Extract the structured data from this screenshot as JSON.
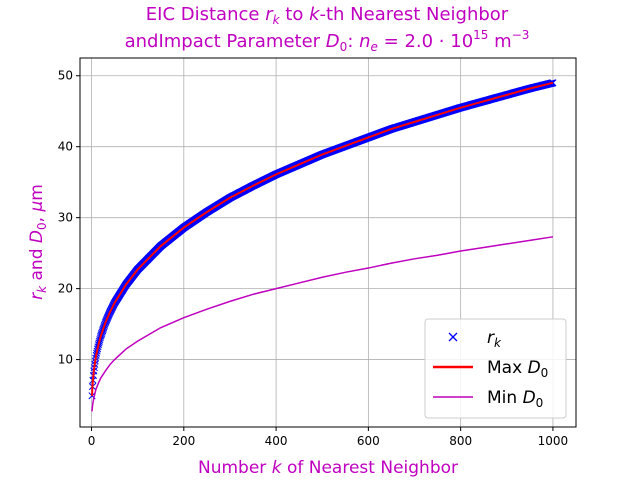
{
  "chart_data": {
    "type": "line",
    "title_line1": "EIC Distance r_k to k-th Nearest Neighbor",
    "title_line2": "andImpact Parameter D_0: n_e = 2.0 · 10^15 m^-3",
    "xlabel": "Number k of Nearest Neighbor",
    "ylabel": "r_k and D_0, μm",
    "xlim": [
      -25,
      1050
    ],
    "ylim": [
      0.5,
      52.5
    ],
    "x_ticks": [
      0,
      200,
      400,
      600,
      800,
      1000
    ],
    "y_ticks": [
      10,
      20,
      30,
      40,
      50
    ],
    "grid": true,
    "legend_position": "lower-right",
    "series": [
      {
        "name": "r_k",
        "kind": "markers",
        "marker": "x",
        "color": "#0000ff",
        "x": [
          1,
          2,
          3,
          5,
          8,
          10,
          15,
          20,
          30,
          40,
          50,
          75,
          100,
          150,
          200,
          250,
          300,
          350,
          400,
          450,
          500,
          550,
          600,
          650,
          700,
          750,
          800,
          850,
          900,
          950,
          1000
        ],
        "y": [
          4.9,
          6.2,
          7.1,
          8.4,
          9.8,
          10.6,
          12.1,
          13.3,
          15.2,
          16.7,
          18.0,
          20.6,
          22.7,
          26.0,
          28.6,
          30.8,
          32.8,
          34.5,
          36.1,
          37.5,
          38.9,
          40.1,
          41.3,
          42.5,
          43.5,
          44.5,
          45.5,
          46.4,
          47.3,
          48.2,
          49.0
        ]
      },
      {
        "name": "Max D_0",
        "kind": "line",
        "color": "#ff0000",
        "x": [
          1,
          2,
          3,
          5,
          8,
          10,
          15,
          20,
          30,
          40,
          50,
          75,
          100,
          150,
          200,
          250,
          300,
          350,
          400,
          450,
          500,
          550,
          600,
          650,
          700,
          750,
          800,
          850,
          900,
          950,
          1000
        ],
        "y": [
          4.9,
          6.2,
          7.1,
          8.4,
          9.8,
          10.6,
          12.1,
          13.3,
          15.2,
          16.7,
          18.0,
          20.6,
          22.7,
          26.0,
          28.6,
          30.8,
          32.8,
          34.5,
          36.1,
          37.5,
          38.9,
          40.1,
          41.3,
          42.5,
          43.5,
          44.5,
          45.5,
          46.4,
          47.3,
          48.2,
          49.0
        ]
      },
      {
        "name": "Min D_0",
        "kind": "line",
        "color": "#bf00bf",
        "x": [
          1,
          2,
          3,
          5,
          8,
          10,
          15,
          20,
          30,
          40,
          50,
          75,
          100,
          150,
          200,
          250,
          300,
          350,
          400,
          450,
          500,
          550,
          600,
          650,
          700,
          750,
          800,
          850,
          900,
          950,
          1000
        ],
        "y": [
          2.7,
          3.4,
          3.9,
          4.6,
          5.4,
          5.9,
          6.7,
          7.4,
          8.4,
          9.3,
          10.0,
          11.5,
          12.6,
          14.5,
          15.9,
          17.1,
          18.2,
          19.2,
          20.0,
          20.8,
          21.6,
          22.3,
          22.9,
          23.6,
          24.2,
          24.7,
          25.3,
          25.8,
          26.3,
          26.8,
          27.3
        ]
      }
    ]
  }
}
